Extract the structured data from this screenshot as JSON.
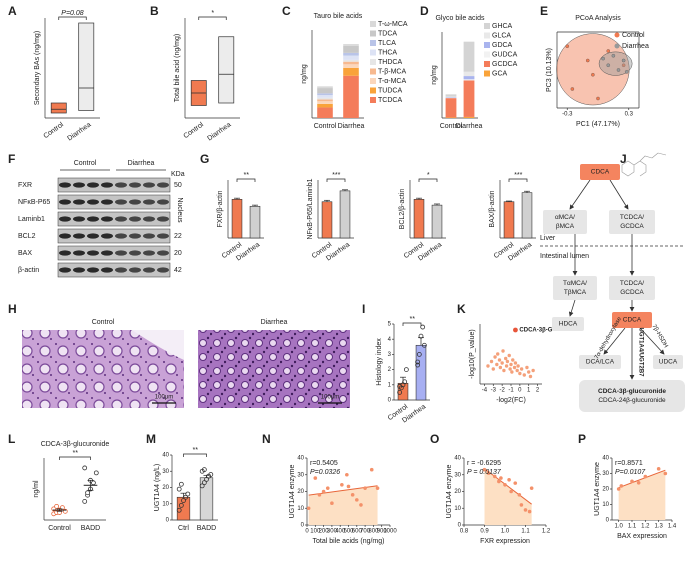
{
  "chart_data": [
    {
      "letter": "A",
      "type": "box",
      "ylabel": "Secondary BAs (ng/mg)",
      "categories": [
        "Control",
        "Diarrhea"
      ],
      "low": [
        2,
        3
      ],
      "median": [
        3.5,
        12
      ],
      "high": [
        6,
        38
      ],
      "colors": [
        "#f07a50",
        "#ececec"
      ],
      "ylim": [
        0,
        40
      ],
      "significance": "P=0.08"
    },
    {
      "letter": "B",
      "type": "box",
      "ylabel": "Total bile acid (ng/mg)",
      "categories": [
        "Control",
        "Diarrhea"
      ],
      "low": [
        10,
        12
      ],
      "median": [
        20,
        35
      ],
      "high": [
        30,
        65
      ],
      "colors": [
        "#f07a50",
        "#ececec"
      ],
      "ylim": [
        0,
        80
      ],
      "significance": "*"
    },
    {
      "letter": "C",
      "type": "stacked",
      "title": "Tauro bile acids",
      "ylabel": "ng/mg",
      "categories": [
        "Control",
        "Diarrhea"
      ],
      "ylim": [
        0,
        10
      ],
      "series": [
        {
          "name": "T-ω-MCA",
          "color": "#d9d9d9",
          "values": [
            0.2,
            0.2
          ]
        },
        {
          "name": "TDCA",
          "color": "#c8c8c8",
          "values": [
            0.6,
            0.8
          ]
        },
        {
          "name": "TLCA",
          "color": "#b9c4e8",
          "values": [
            0.2,
            0.3
          ]
        },
        {
          "name": "THCA",
          "color": "#dde3f5",
          "values": [
            0.3,
            0.5
          ]
        },
        {
          "name": "THDCA",
          "color": "#e6e6e6",
          "values": [
            0.2,
            0.2
          ]
        },
        {
          "name": "T-β-MCA",
          "color": "#f7b98f",
          "values": [
            0.2,
            0.3
          ]
        },
        {
          "name": "T-α-MCA",
          "color": "#fbd7bc",
          "values": [
            0.3,
            0.4
          ]
        },
        {
          "name": "TUDCA",
          "color": "#f9a33a",
          "values": [
            0.4,
            0.9
          ]
        },
        {
          "name": "TCDCA",
          "color": "#f47c5a",
          "values": [
            1.2,
            4.8
          ]
        }
      ]
    },
    {
      "letter": "D",
      "type": "stacked",
      "title": "Glyco bile acids",
      "ylabel": "ng/mg",
      "categories": [
        "Control",
        "Diarrhea"
      ],
      "ylim": [
        0,
        8
      ],
      "series": [
        {
          "name": "GHCA",
          "color": "#d4d4d4",
          "values": [
            0.2,
            2.8
          ]
        },
        {
          "name": "GLCA",
          "color": "#e9e9e9",
          "values": [
            0.05,
            0.4
          ]
        },
        {
          "name": "GDCA",
          "color": "#a9b4ee",
          "values": [
            0.05,
            0.3
          ]
        },
        {
          "name": "GUDCA",
          "color": "#f2f2f2",
          "values": [
            0.05,
            0.1
          ]
        },
        {
          "name": "GCDCA",
          "color": "#f47c5a",
          "values": [
            1.8,
            3.4
          ]
        },
        {
          "name": "GCA",
          "color": "#f9a33a",
          "values": [
            0.05,
            0.1
          ]
        }
      ]
    },
    {
      "letter": "E",
      "type": "pcoa",
      "title": "PCoA Analysis",
      "xlabel": "PC1 (47.17%)",
      "ylabel": "PC3 (10.13%)",
      "xlim": [
        -0.4,
        0.4
      ],
      "ylim": [
        -0.4,
        0.4
      ],
      "xticks": [
        -0.3,
        0.3
      ],
      "series": [
        {
          "name": "Control",
          "color": "#f07a50",
          "x": [
            -0.3,
            -0.25,
            -0.1,
            0,
            0.1,
            0.25,
            -0.05
          ],
          "y": [
            0.25,
            -0.2,
            0.1,
            -0.3,
            0.2,
            0.05,
            -0.05
          ]
        },
        {
          "name": "Diarrhea",
          "color": "#999999",
          "x": [
            0.05,
            0.1,
            0.15,
            0.2,
            0.25,
            0.28
          ],
          "y": [
            0.12,
            0.05,
            0.15,
            0,
            0.1,
            -0.02
          ]
        }
      ]
    },
    {
      "letter": "G",
      "type": "bar",
      "ylabel": "FXR/β-actin",
      "categories": [
        "Control",
        "Diarrhea"
      ],
      "values": [
        1.0,
        0.82
      ],
      "errors": [
        0.03,
        0.03
      ],
      "colors": [
        "#f07a50",
        "#d0d0d0"
      ],
      "ylim": [
        0,
        1.5
      ],
      "significance": "**"
    },
    {
      "type": "bar",
      "ylabel": "NFκB-P65/Laminb1",
      "categories": [
        "Control",
        "Diarrhea"
      ],
      "values": [
        1.0,
        1.3
      ],
      "errors": [
        0.04,
        0.03
      ],
      "colors": [
        "#f07a50",
        "#d0d0d0"
      ],
      "ylim": [
        0,
        1.6
      ],
      "significance": "***"
    },
    {
      "type": "bar",
      "ylabel": "BCL2/β-actin",
      "categories": [
        "Control",
        "Diarrhea"
      ],
      "values": [
        1.0,
        0.85
      ],
      "errors": [
        0.03,
        0.03
      ],
      "colors": [
        "#f07a50",
        "#d0d0d0"
      ],
      "ylim": [
        0,
        1.5
      ],
      "significance": "*"
    },
    {
      "type": "bar",
      "ylabel": "BAX/β-actin",
      "categories": [
        "Control",
        "Diarrhea"
      ],
      "values": [
        1.0,
        1.25
      ],
      "errors": [
        0.02,
        0.04
      ],
      "colors": [
        "#f07a50",
        "#d0d0d0"
      ],
      "ylim": [
        0,
        1.6
      ],
      "significance": "***"
    },
    {
      "letter": "I",
      "type": "bar",
      "ylabel": "Histology index",
      "categories": [
        "Control",
        "Diarrhea"
      ],
      "values": [
        1.1,
        3.6
      ],
      "errors": [
        0.4,
        0.5
      ],
      "points": [
        [
          0.5,
          0.8,
          1.0,
          1.2,
          2.0,
          0.9
        ],
        [
          2.5,
          3.0,
          4.2,
          4.8,
          3.6,
          2.3
        ]
      ],
      "colors": [
        "#f07a50",
        "#a7aff2"
      ],
      "ylim": [
        0,
        5
      ],
      "yticks": [
        0,
        1,
        2,
        3,
        4,
        5
      ],
      "significance": "**"
    },
    {
      "letter": "K",
      "type": "volcano",
      "xlabel": "-log2(FC)",
      "ylabel": "-log10(P_value)",
      "xlim": [
        -4.5,
        2.5
      ],
      "ylim": [
        0,
        4
      ],
      "xticks": [
        -4,
        -3,
        -2,
        -1,
        0,
        1,
        2
      ],
      "x": [
        -3.6,
        -3.2,
        -3,
        -2.8,
        -2.6,
        -2.5,
        -2.3,
        -2.2,
        -2,
        -1.9,
        -1.8,
        -1.6,
        -1.5,
        -1.4,
        -1.2,
        -1.1,
        -1,
        -0.9,
        -0.8,
        -0.6,
        -0.5,
        -0.3,
        -0.2,
        0,
        0.2,
        0.5,
        0.8,
        1,
        1.2,
        1.5
      ],
      "y": [
        1.2,
        1.5,
        1.0,
        1.8,
        1.3,
        2.0,
        1.6,
        1.1,
        1.4,
        2.2,
        0.9,
        1.7,
        1.2,
        1.5,
        1.9,
        1.0,
        1.3,
        0.8,
        1.6,
        1.1,
        1.4,
        0.9,
        1.2,
        0.7,
        1.0,
        0.6,
        1.1,
        0.8,
        0.5,
        0.9
      ],
      "highlight": {
        "label": "CDCA-3β-G",
        "x": -0.5,
        "y": 3.6
      }
    },
    {
      "letter": "L",
      "type": "bar",
      "style": "dots",
      "title": "CDCA-3β-glucuronide",
      "title_color": "#e8332a",
      "ylabel": "ng/ml",
      "categories": [
        "Control",
        "BADD"
      ],
      "values": [
        0.08,
        0.28
      ],
      "errors": [
        0.01,
        0.04
      ],
      "points": [
        [
          0.05,
          0.06,
          0.08,
          0.1,
          0.07,
          0.09,
          0.11,
          0.06
        ],
        [
          0.15,
          0.2,
          0.25,
          0.3,
          0.38,
          0.42,
          0.22,
          0.32
        ]
      ],
      "colors": [
        "#e8663a",
        "#333333"
      ],
      "ylim": [
        0,
        0.5
      ],
      "significance": "**"
    },
    {
      "letter": "M",
      "type": "bar",
      "ylabel": "UGT1A4 (ng/L)",
      "categories": [
        "Ctrl",
        "BADD"
      ],
      "values": [
        14,
        26
      ],
      "errors": [
        2.5,
        1.5
      ],
      "points": [
        [
          6,
          9,
          12,
          14,
          16,
          19,
          22
        ],
        [
          21,
          23,
          25,
          27,
          28,
          30,
          31
        ]
      ],
      "colors": [
        "#f07a50",
        "#d6d6d6"
      ],
      "ylim": [
        0,
        40
      ],
      "yticks": [
        0,
        10,
        20,
        30,
        40
      ],
      "significance": "**"
    },
    {
      "letter": "N",
      "type": "regression",
      "xlabel": "Total bile acids (ng/mg)",
      "ylabel": "UGT1A4 enzyme",
      "annotations": [
        "r=0.5405",
        "P=0.0326"
      ],
      "xlim": [
        0,
        1000
      ],
      "ylim": [
        0,
        40
      ],
      "xticks": [
        0,
        100,
        200,
        300,
        400,
        500,
        600,
        700,
        800,
        900,
        1000
      ],
      "yticks": [
        0,
        10,
        20,
        30,
        40
      ],
      "x": [
        20,
        100,
        150,
        200,
        250,
        300,
        420,
        480,
        500,
        550,
        600,
        650,
        700,
        780,
        850
      ],
      "y": [
        10,
        28,
        18,
        20,
        22,
        13,
        24,
        30,
        23,
        18,
        15,
        12,
        22,
        33,
        22
      ]
    },
    {
      "letter": "O",
      "type": "regression",
      "xlabel": "FXR expression",
      "ylabel": "UGT1A4 enzyme",
      "annotations": [
        "r = -0.6295",
        "P = 0.0137"
      ],
      "xlim": [
        0.8,
        1.2
      ],
      "ylim": [
        0,
        40
      ],
      "xticks": [
        0.8,
        0.9,
        {
          "value": 1,
          "label": "1.0"
        },
        1.1,
        1.2
      ],
      "yticks": [
        0,
        10,
        20,
        30,
        40
      ],
      "x": [
        0.9,
        0.92,
        0.95,
        0.97,
        0.98,
        1.0,
        1.02,
        1.03,
        1.05,
        1.07,
        1.08,
        1.1,
        1.12,
        1.13
      ],
      "y": [
        33,
        31,
        29,
        26,
        28,
        24,
        27,
        20,
        25,
        18,
        12,
        9,
        8,
        22
      ]
    },
    {
      "letter": "P",
      "type": "regression",
      "xlabel": "BAX expression",
      "ylabel": "UGT1A4 enzyme",
      "annotations": [
        "r=0.8571",
        "P=0.0107"
      ],
      "xlim": [
        0.95,
        1.4
      ],
      "ylim": [
        0,
        40
      ],
      "xticks": [
        {
          "value": 1,
          "label": "1.0"
        },
        1.1,
        1.2,
        1.3,
        1.4
      ],
      "yticks": [
        0,
        10,
        20,
        30,
        40
      ],
      "x": [
        1.0,
        1.02,
        1.1,
        1.15,
        1.2,
        1.3,
        1.35
      ],
      "y": [
        20,
        22,
        25,
        24,
        28,
        33,
        30
      ]
    }
  ],
  "blot": {
    "letter": "F",
    "groups": [
      "Control",
      "Diarrhea"
    ],
    "unit": "KDa",
    "compartment": "Nucleus",
    "rows": [
      {
        "name": "FXR",
        "size": 50
      },
      {
        "name": "NFκB-P65"
      },
      {
        "name": "Laminb1"
      },
      {
        "name": "BCL2",
        "size": 22
      },
      {
        "name": "BAX",
        "size": 20
      },
      {
        "name": "β-actin",
        "size": 42
      }
    ]
  },
  "histology": {
    "letter": "H",
    "panels": [
      {
        "label": "Control",
        "scale": "100μm"
      },
      {
        "label": "Diarrhea",
        "scale": "100μm"
      }
    ]
  },
  "pathway": {
    "letter": "J",
    "liver": "Liver",
    "lumen": "Intestinal lumen",
    "nodes": [
      [
        "CDCA"
      ],
      [
        "αMCA/",
        "βMCA"
      ],
      [
        "TCDCA/",
        "GCDCA"
      ],
      [
        "TαMCA/",
        "TβMCA"
      ],
      [
        "HDCA"
      ],
      [
        "TCDCA/",
        "GCDCA"
      ],
      [
        "CDCA"
      ],
      [
        "DCA/LCA"
      ],
      [
        "UDCA"
      ],
      [
        "CDCA-3β-glucuronide",
        "CDCA-24β-glucuronide"
      ]
    ],
    "enzymes": [
      "UGT1A4/UGT2B7",
      "7α-dehydroxylase",
      "7β-HSDH"
    ]
  }
}
